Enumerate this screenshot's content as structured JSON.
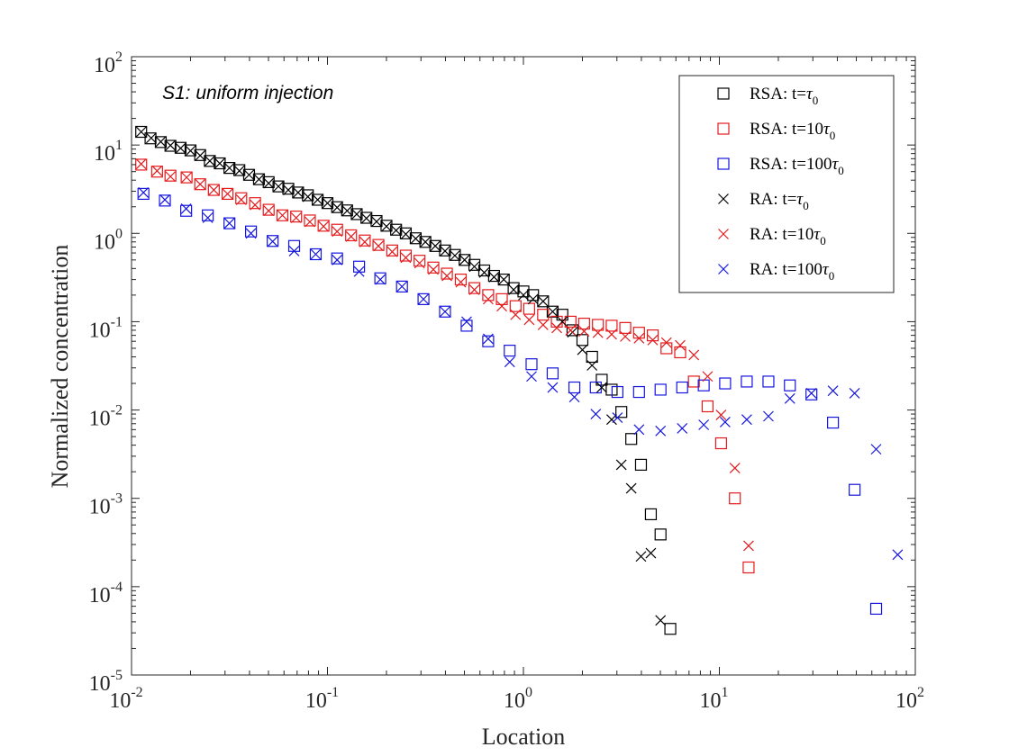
{
  "chart_data": {
    "type": "scatter",
    "title": "",
    "xlabel": "Location",
    "ylabel": "Normalized concentration",
    "xscale": "log",
    "yscale": "log",
    "xlim": [
      0.01,
      100
    ],
    "ylim": [
      1e-05,
      100
    ],
    "x_tick_labels": [
      {
        "base": "10",
        "exp": "-2"
      },
      {
        "base": "10",
        "exp": "-1"
      },
      {
        "base": "10",
        "exp": "0"
      },
      {
        "base": "10",
        "exp": "1"
      },
      {
        "base": "10",
        "exp": "2"
      }
    ],
    "y_tick_labels": [
      {
        "base": "10",
        "exp": "-5"
      },
      {
        "base": "10",
        "exp": "-4"
      },
      {
        "base": "10",
        "exp": "-3"
      },
      {
        "base": "10",
        "exp": "-2"
      },
      {
        "base": "10",
        "exp": "-1"
      },
      {
        "base": "10",
        "exp": "0"
      },
      {
        "base": "10",
        "exp": "1"
      },
      {
        "base": "10",
        "exp": "2"
      }
    ],
    "annotation": "S1: uniform injection",
    "legend_position": "top-right",
    "grid": false,
    "series": [
      {
        "name": "RSA: t=τ0",
        "label": "RSA: t=",
        "label_tau": "τ",
        "label_sub": "0",
        "marker": "square",
        "color": "#000000",
        "points": [
          [
            0.0112,
            14.1
          ],
          [
            0.0125,
            11.9
          ],
          [
            0.0141,
            10.8
          ],
          [
            0.0158,
            9.8
          ],
          [
            0.0178,
            9.3
          ],
          [
            0.02,
            8.7
          ],
          [
            0.0224,
            7.7
          ],
          [
            0.0251,
            6.6
          ],
          [
            0.0282,
            6.2
          ],
          [
            0.0316,
            5.5
          ],
          [
            0.0355,
            5.2
          ],
          [
            0.0398,
            4.6
          ],
          [
            0.0447,
            4.1
          ],
          [
            0.0501,
            3.8
          ],
          [
            0.0562,
            3.4
          ],
          [
            0.0631,
            3.2
          ],
          [
            0.0708,
            2.9
          ],
          [
            0.0794,
            2.7
          ],
          [
            0.0891,
            2.4
          ],
          [
            0.1,
            2.2
          ],
          [
            0.112,
            1.98
          ],
          [
            0.126,
            1.82
          ],
          [
            0.141,
            1.65
          ],
          [
            0.158,
            1.5
          ],
          [
            0.178,
            1.38
          ],
          [
            0.2,
            1.22
          ],
          [
            0.224,
            1.1
          ],
          [
            0.251,
            1.0
          ],
          [
            0.282,
            0.88
          ],
          [
            0.316,
            0.8
          ],
          [
            0.355,
            0.72
          ],
          [
            0.398,
            0.64
          ],
          [
            0.447,
            0.57
          ],
          [
            0.501,
            0.5
          ],
          [
            0.562,
            0.44
          ],
          [
            0.631,
            0.38
          ],
          [
            0.708,
            0.33
          ],
          [
            0.794,
            0.3
          ],
          [
            0.891,
            0.24
          ],
          [
            1.0,
            0.22
          ],
          [
            1.12,
            0.2
          ],
          [
            1.26,
            0.17
          ],
          [
            1.41,
            0.13
          ],
          [
            1.58,
            0.12
          ],
          [
            1.78,
            0.08
          ],
          [
            2.0,
            0.062
          ],
          [
            2.24,
            0.04
          ],
          [
            2.51,
            0.022
          ],
          [
            2.82,
            0.017
          ],
          [
            3.16,
            0.0095
          ],
          [
            3.55,
            0.0047
          ],
          [
            3.98,
            0.0024
          ],
          [
            4.47,
            0.00066
          ],
          [
            5.01,
            0.00039
          ],
          [
            5.62,
            3.33e-05
          ]
        ]
      },
      {
        "name": "RSA: t=10τ0",
        "label": "RSA: t=10",
        "label_tau": "τ",
        "label_sub": "0",
        "marker": "square",
        "color": "#e41a1c",
        "points": [
          [
            0.0112,
            6.0
          ],
          [
            0.0135,
            5.0
          ],
          [
            0.0158,
            4.5
          ],
          [
            0.0191,
            4.3
          ],
          [
            0.0224,
            3.6
          ],
          [
            0.0263,
            3.1
          ],
          [
            0.0309,
            2.8
          ],
          [
            0.0363,
            2.5
          ],
          [
            0.0427,
            2.2
          ],
          [
            0.0501,
            1.85
          ],
          [
            0.0589,
            1.6
          ],
          [
            0.0692,
            1.55
          ],
          [
            0.0813,
            1.4
          ],
          [
            0.0955,
            1.22
          ],
          [
            0.112,
            1.1
          ],
          [
            0.132,
            0.95
          ],
          [
            0.155,
            0.83
          ],
          [
            0.182,
            0.74
          ],
          [
            0.214,
            0.64
          ],
          [
            0.251,
            0.56
          ],
          [
            0.295,
            0.49
          ],
          [
            0.347,
            0.41
          ],
          [
            0.407,
            0.35
          ],
          [
            0.479,
            0.3
          ],
          [
            0.562,
            0.24
          ],
          [
            0.661,
            0.2
          ],
          [
            0.776,
            0.18
          ],
          [
            0.912,
            0.15
          ],
          [
            1.07,
            0.14
          ],
          [
            1.26,
            0.12
          ],
          [
            1.48,
            0.1
          ],
          [
            1.74,
            0.1
          ],
          [
            2.04,
            0.095
          ],
          [
            2.4,
            0.092
          ],
          [
            2.82,
            0.09
          ],
          [
            3.31,
            0.085
          ],
          [
            3.89,
            0.075
          ],
          [
            4.57,
            0.07
          ],
          [
            5.37,
            0.05
          ],
          [
            6.31,
            0.045
          ],
          [
            7.41,
            0.021
          ],
          [
            8.71,
            0.011
          ],
          [
            10.2,
            0.0042
          ],
          [
            12.0,
            0.001
          ],
          [
            14.1,
            0.000165
          ]
        ]
      },
      {
        "name": "RSA: t=100τ0",
        "label": "RSA: t=100",
        "label_tau": "τ",
        "label_sub": "0",
        "marker": "square",
        "color": "#1515e0",
        "points": [
          [
            0.0115,
            2.8
          ],
          [
            0.0148,
            2.35
          ],
          [
            0.019,
            1.8
          ],
          [
            0.0245,
            1.6
          ],
          [
            0.0316,
            1.3
          ],
          [
            0.0407,
            1.05
          ],
          [
            0.0525,
            0.82
          ],
          [
            0.0676,
            0.72
          ],
          [
            0.0871,
            0.58
          ],
          [
            0.112,
            0.52
          ],
          [
            0.145,
            0.42
          ],
          [
            0.186,
            0.31
          ],
          [
            0.24,
            0.25
          ],
          [
            0.309,
            0.18
          ],
          [
            0.398,
            0.13
          ],
          [
            0.513,
            0.09
          ],
          [
            0.661,
            0.06
          ],
          [
            0.851,
            0.047
          ],
          [
            1.1,
            0.033
          ],
          [
            1.41,
            0.026
          ],
          [
            1.82,
            0.018
          ],
          [
            2.34,
            0.018
          ],
          [
            3.02,
            0.016
          ],
          [
            3.89,
            0.016
          ],
          [
            5.01,
            0.017
          ],
          [
            6.46,
            0.018
          ],
          [
            8.32,
            0.019
          ],
          [
            10.7,
            0.02
          ],
          [
            13.8,
            0.021
          ],
          [
            17.8,
            0.021
          ],
          [
            22.9,
            0.019
          ],
          [
            29.5,
            0.015
          ],
          [
            38.0,
            0.0072
          ],
          [
            49.0,
            0.00125
          ],
          [
            63.1,
            5.62e-05
          ]
        ]
      },
      {
        "name": "RA: t=τ0",
        "label": "RA: t=",
        "label_tau": "τ",
        "label_sub": "0",
        "marker": "x",
        "color": "#000000",
        "points": [
          [
            0.0112,
            14.1
          ],
          [
            0.0126,
            12.0
          ],
          [
            0.0141,
            10.9
          ],
          [
            0.0158,
            9.9
          ],
          [
            0.0178,
            9.2
          ],
          [
            0.02,
            8.6
          ],
          [
            0.0224,
            7.6
          ],
          [
            0.0251,
            6.6
          ],
          [
            0.0282,
            6.2
          ],
          [
            0.0316,
            5.5
          ],
          [
            0.0355,
            5.1
          ],
          [
            0.0398,
            4.6
          ],
          [
            0.0447,
            4.1
          ],
          [
            0.0501,
            3.7
          ],
          [
            0.0562,
            3.4
          ],
          [
            0.0631,
            3.1
          ],
          [
            0.0708,
            2.9
          ],
          [
            0.0794,
            2.6
          ],
          [
            0.0891,
            2.4
          ],
          [
            0.1,
            2.2
          ],
          [
            0.112,
            1.96
          ],
          [
            0.126,
            1.8
          ],
          [
            0.141,
            1.65
          ],
          [
            0.158,
            1.48
          ],
          [
            0.178,
            1.36
          ],
          [
            0.2,
            1.2
          ],
          [
            0.224,
            1.08
          ],
          [
            0.251,
            0.98
          ],
          [
            0.282,
            0.87
          ],
          [
            0.316,
            0.8
          ],
          [
            0.355,
            0.72
          ],
          [
            0.398,
            0.63
          ],
          [
            0.447,
            0.56
          ],
          [
            0.501,
            0.5
          ],
          [
            0.562,
            0.42
          ],
          [
            0.631,
            0.36
          ],
          [
            0.708,
            0.32
          ],
          [
            0.794,
            0.3
          ],
          [
            0.891,
            0.23
          ],
          [
            1.0,
            0.2
          ],
          [
            1.12,
            0.18
          ],
          [
            1.26,
            0.17
          ],
          [
            1.41,
            0.13
          ],
          [
            1.58,
            0.1
          ],
          [
            1.78,
            0.076
          ],
          [
            2.0,
            0.048
          ],
          [
            2.24,
            0.032
          ],
          [
            2.51,
            0.018
          ],
          [
            2.82,
            0.0078
          ],
          [
            3.16,
            0.0024
          ],
          [
            3.55,
            0.0013
          ],
          [
            3.98,
            0.00022
          ],
          [
            4.47,
            0.00024
          ],
          [
            5.01,
            4.15e-05
          ]
        ]
      },
      {
        "name": "RA: t=10τ0",
        "label": "RA: t=10",
        "label_tau": "τ",
        "label_sub": "0",
        "marker": "x",
        "color": "#e41a1c",
        "points": [
          [
            0.0112,
            6.1
          ],
          [
            0.0135,
            5.1
          ],
          [
            0.0158,
            4.4
          ],
          [
            0.0191,
            4.3
          ],
          [
            0.0224,
            3.6
          ],
          [
            0.0263,
            3.1
          ],
          [
            0.0309,
            2.8
          ],
          [
            0.0363,
            2.4
          ],
          [
            0.0427,
            2.1
          ],
          [
            0.0501,
            1.8
          ],
          [
            0.0589,
            1.6
          ],
          [
            0.0692,
            1.5
          ],
          [
            0.0813,
            1.35
          ],
          [
            0.0955,
            1.2
          ],
          [
            0.112,
            1.05
          ],
          [
            0.132,
            0.92
          ],
          [
            0.155,
            0.8
          ],
          [
            0.182,
            0.72
          ],
          [
            0.214,
            0.62
          ],
          [
            0.251,
            0.53
          ],
          [
            0.295,
            0.46
          ],
          [
            0.347,
            0.39
          ],
          [
            0.407,
            0.33
          ],
          [
            0.479,
            0.28
          ],
          [
            0.562,
            0.23
          ],
          [
            0.661,
            0.18
          ],
          [
            0.776,
            0.15
          ],
          [
            0.912,
            0.12
          ],
          [
            1.07,
            0.105
          ],
          [
            1.26,
            0.092
          ],
          [
            1.48,
            0.085
          ],
          [
            1.74,
            0.08
          ],
          [
            2.04,
            0.078
          ],
          [
            2.4,
            0.075
          ],
          [
            2.82,
            0.072
          ],
          [
            3.31,
            0.068
          ],
          [
            3.89,
            0.065
          ],
          [
            4.57,
            0.062
          ],
          [
            5.37,
            0.058
          ],
          [
            6.31,
            0.054
          ],
          [
            7.41,
            0.042
          ],
          [
            8.71,
            0.024
          ],
          [
            10.2,
            0.0088
          ],
          [
            12.0,
            0.0022
          ],
          [
            14.1,
            0.00029
          ]
        ]
      },
      {
        "name": "RA: t=100τ0",
        "label": "RA: t=100",
        "label_tau": "τ",
        "label_sub": "0",
        "marker": "x",
        "color": "#1515e0",
        "points": [
          [
            0.0115,
            2.9
          ],
          [
            0.0148,
            2.4
          ],
          [
            0.019,
            1.9
          ],
          [
            0.0245,
            1.5
          ],
          [
            0.0316,
            1.3
          ],
          [
            0.0407,
            1.0
          ],
          [
            0.0525,
            0.81
          ],
          [
            0.0676,
            0.63
          ],
          [
            0.0871,
            0.58
          ],
          [
            0.112,
            0.5
          ],
          [
            0.145,
            0.37
          ],
          [
            0.186,
            0.3
          ],
          [
            0.24,
            0.25
          ],
          [
            0.309,
            0.18
          ],
          [
            0.398,
            0.13
          ],
          [
            0.513,
            0.1
          ],
          [
            0.661,
            0.064
          ],
          [
            0.851,
            0.035
          ],
          [
            1.1,
            0.024
          ],
          [
            1.41,
            0.018
          ],
          [
            1.82,
            0.014
          ],
          [
            2.34,
            0.009
          ],
          [
            3.02,
            0.0082
          ],
          [
            3.89,
            0.006
          ],
          [
            5.01,
            0.0058
          ],
          [
            6.46,
            0.0062
          ],
          [
            8.32,
            0.0068
          ],
          [
            10.7,
            0.0073
          ],
          [
            13.8,
            0.0078
          ],
          [
            17.8,
            0.0085
          ],
          [
            22.9,
            0.0135
          ],
          [
            29.5,
            0.0155
          ],
          [
            38.0,
            0.0165
          ],
          [
            49.0,
            0.0155
          ],
          [
            63.1,
            0.0036
          ],
          [
            81.3,
            0.00023
          ]
        ]
      }
    ]
  }
}
